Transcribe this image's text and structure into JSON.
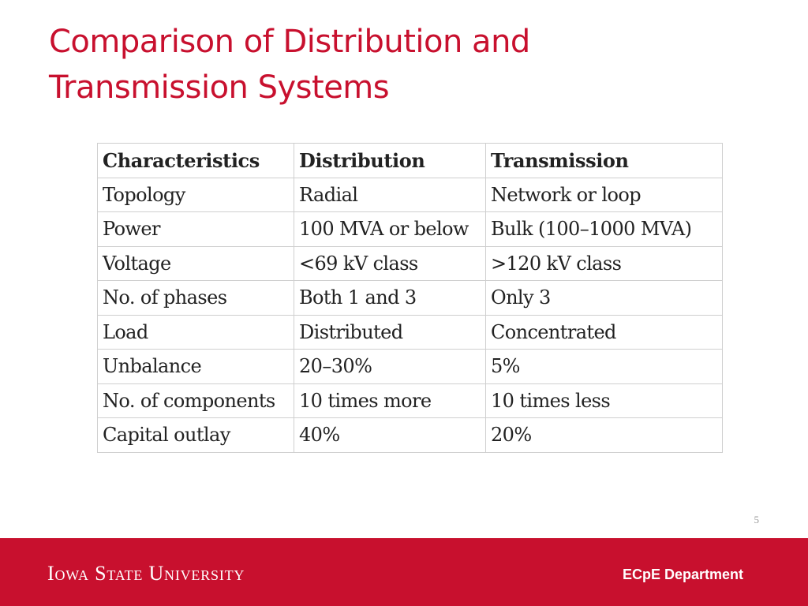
{
  "slide": {
    "title_line1": "Comparison of Distribution and",
    "title_line2": "Transmission Systems",
    "page_number": "5"
  },
  "table": {
    "headers": [
      "Characteristics",
      "Distribution",
      "Transmission"
    ],
    "rows": [
      [
        "Topology",
        "Radial",
        "Network or loop"
      ],
      [
        "Power",
        "100 MVA or below",
        "Bulk (100–1000 MVA)"
      ],
      [
        "Voltage",
        "<69 kV class",
        ">120 kV class"
      ],
      [
        "No. of phases",
        "Both 1 and 3",
        "Only 3"
      ],
      [
        "Load",
        "Distributed",
        "Concentrated"
      ],
      [
        "Unbalance",
        "20–30%",
        "5%"
      ],
      [
        "No. of components",
        "10 times more",
        "10 times less"
      ],
      [
        "Capital outlay",
        "40%",
        "20%"
      ]
    ]
  },
  "footer": {
    "university": "Iowa State University",
    "department": "ECpE Department"
  },
  "colors": {
    "brand_red": "#c8102e",
    "footer_text": "#ffffff",
    "table_border": "#cfcfcf"
  }
}
